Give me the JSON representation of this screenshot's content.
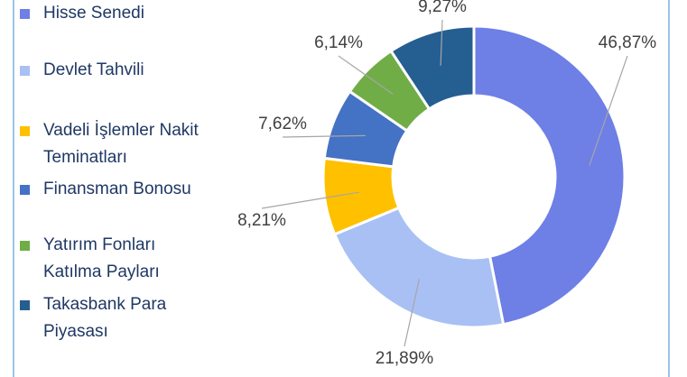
{
  "chart_data": {
    "type": "donut",
    "categories": [
      "Hisse Senedi",
      "Devlet Tahvili",
      "Vadeli İşlemler Nakit Teminatları",
      "Finansman Bonosu",
      "Yatırım Fonları Katılma Payları",
      "Takasbank Para Piyasası"
    ],
    "values": [
      46.87,
      21.89,
      8.21,
      7.62,
      6.14,
      9.27
    ],
    "value_labels": [
      "46,87%",
      "21,89%",
      "8,21%",
      "7,62%",
      "6,14%",
      "9,27%"
    ],
    "colors": [
      "#6e7fe6",
      "#a9c0f5",
      "#ffc000",
      "#4472c4",
      "#70ad47",
      "#255e91"
    ],
    "legend": "left"
  }
}
